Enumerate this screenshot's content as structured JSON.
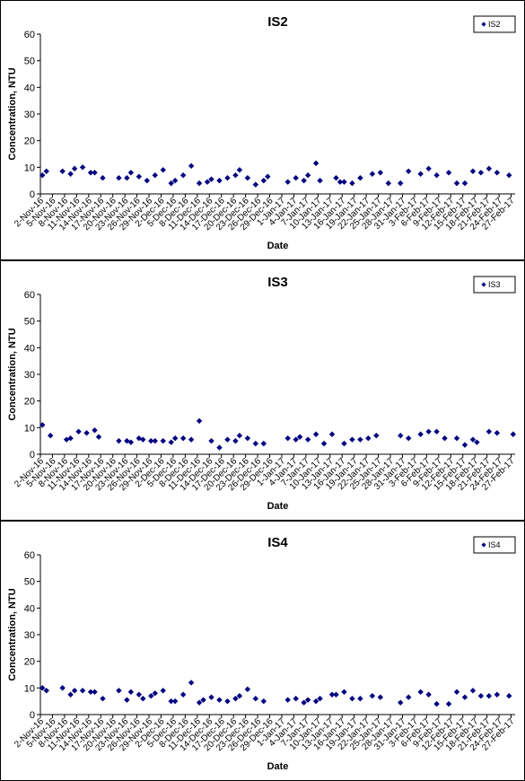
{
  "chart_data": [
    {
      "type": "scatter",
      "title": "IS2",
      "xlabel": "Date",
      "ylabel": "Concentration, NTU",
      "ylim": [
        0,
        60
      ],
      "yticks": [
        0,
        10,
        20,
        30,
        40,
        50,
        60
      ],
      "grid": false,
      "legend": "top-right",
      "marker_color": "#000080",
      "x_tick_labels": [
        "2-Nov-16",
        "5-Nov-16",
        "8-Nov-16",
        "11-Nov-16",
        "14-Nov-16",
        "17-Nov-16",
        "20-Nov-16",
        "23-Nov-16",
        "26-Nov-16",
        "29-Nov-16",
        "2-Dec-16",
        "5-Dec-16",
        "8-Dec-16",
        "11-Dec-16",
        "14-Dec-16",
        "17-Dec-16",
        "20-Dec-16",
        "23-Dec-16",
        "26-Dec-16",
        "29-Dec-16",
        "1-Jan-17",
        "4-Jan-17",
        "7-Jan-17",
        "10-Jan-17",
        "13-Jan-17",
        "16-Jan-17",
        "19-Jan-17",
        "22-Jan-17",
        "25-Jan-17",
        "28-Jan-17",
        "31-Jan-17",
        "3-Feb-17",
        "6-Feb-17",
        "9-Feb-17",
        "12-Feb-17",
        "15-Feb-17",
        "18-Feb-17",
        "21-Feb-17",
        "24-Feb-17",
        "27-Feb-17"
      ],
      "series": [
        {
          "name": "IS2",
          "x": [
            "2-Nov-16",
            "3-Nov-16",
            "7-Nov-16",
            "9-Nov-16",
            "10-Nov-16",
            "12-Nov-16",
            "14-Nov-16",
            "15-Nov-16",
            "17-Nov-16",
            "21-Nov-16",
            "23-Nov-16",
            "24-Nov-16",
            "26-Nov-16",
            "28-Nov-16",
            "30-Nov-16",
            "2-Dec-16",
            "4-Dec-16",
            "5-Dec-16",
            "7-Dec-16",
            "9-Dec-16",
            "11-Dec-16",
            "13-Dec-16",
            "14-Dec-16",
            "16-Dec-16",
            "18-Dec-16",
            "20-Dec-16",
            "21-Dec-16",
            "23-Dec-16",
            "25-Dec-16",
            "27-Dec-16",
            "28-Dec-16",
            "2-Jan-17",
            "4-Jan-17",
            "6-Jan-17",
            "7-Jan-17",
            "9-Jan-17",
            "10-Jan-17",
            "14-Jan-17",
            "15-Jan-17",
            "16-Jan-17",
            "18-Jan-17",
            "20-Jan-17",
            "23-Jan-17",
            "25-Jan-17",
            "27-Jan-17",
            "30-Jan-17",
            "1-Feb-17",
            "4-Feb-17",
            "6-Feb-17",
            "8-Feb-17",
            "11-Feb-17",
            "13-Feb-17",
            "15-Feb-17",
            "17-Feb-17",
            "19-Feb-17",
            "21-Feb-17",
            "23-Feb-17",
            "26-Feb-17"
          ],
          "values": [
            7,
            8.5,
            8.5,
            7.5,
            9.5,
            10,
            8,
            8,
            6,
            6,
            6,
            8,
            6.5,
            5,
            7,
            9,
            4,
            5,
            7,
            10.5,
            4,
            4.5,
            5.5,
            5,
            6,
            7,
            9,
            6,
            3.5,
            5,
            6.5,
            4.5,
            6,
            5,
            7,
            11.5,
            5,
            6,
            4.5,
            4.5,
            4,
            6,
            7.5,
            8,
            4,
            4,
            8.5,
            7.5,
            9.5,
            7,
            8,
            4,
            4,
            8.5,
            8,
            9.5,
            8,
            7
          ]
        }
      ]
    },
    {
      "type": "scatter",
      "title": "IS3",
      "xlabel": "Date",
      "ylabel": "Concentration, NTU",
      "ylim": [
        0,
        60
      ],
      "yticks": [
        0,
        10,
        20,
        30,
        40,
        50,
        60
      ],
      "grid": false,
      "legend": "top-right",
      "marker_color": "#000080",
      "x_tick_labels": [
        "2-Nov-16",
        "5-Nov-16",
        "8-Nov-16",
        "11-Nov-16",
        "14-Nov-16",
        "17-Nov-16",
        "20-Nov-16",
        "23-Nov-16",
        "26-Nov-16",
        "29-Nov-16",
        "2-Dec-16",
        "5-Dec-16",
        "8-Dec-16",
        "11-Dec-16",
        "14-Dec-16",
        "17-Dec-16",
        "20-Dec-16",
        "23-Dec-16",
        "26-Dec-16",
        "29-Dec-16",
        "1-Jan-17",
        "4-Jan-17",
        "7-Jan-17",
        "10-Jan-17",
        "13-Jan-17",
        "16-Jan-17",
        "19-Jan-17",
        "22-Jan-17",
        "25-Jan-17",
        "28-Jan-17",
        "31-Jan-17",
        "3-Feb-17",
        "6-Feb-17",
        "9-Feb-17",
        "12-Feb-17",
        "15-Feb-17",
        "18-Feb-17",
        "21-Feb-17",
        "24-Feb-17",
        "27-Feb-17"
      ],
      "series": [
        {
          "name": "IS3",
          "x": [
            "2-Nov-16",
            "4-Nov-16",
            "8-Nov-16",
            "9-Nov-16",
            "11-Nov-16",
            "13-Nov-16",
            "15-Nov-16",
            "16-Nov-16",
            "21-Nov-16",
            "23-Nov-16",
            "24-Nov-16",
            "26-Nov-16",
            "27-Nov-16",
            "29-Nov-16",
            "30-Nov-16",
            "2-Dec-16",
            "4-Dec-16",
            "5-Dec-16",
            "7-Dec-16",
            "9-Dec-16",
            "11-Dec-16",
            "14-Dec-16",
            "16-Dec-16",
            "18-Dec-16",
            "20-Dec-16",
            "21-Dec-16",
            "23-Dec-16",
            "25-Dec-16",
            "27-Dec-16",
            "2-Jan-17",
            "4-Jan-17",
            "5-Jan-17",
            "7-Jan-17",
            "9-Jan-17",
            "11-Jan-17",
            "13-Jan-17",
            "16-Jan-17",
            "18-Jan-17",
            "20-Jan-17",
            "22-Jan-17",
            "24-Jan-17",
            "30-Jan-17",
            "1-Feb-17",
            "4-Feb-17",
            "6-Feb-17",
            "8-Feb-17",
            "10-Feb-17",
            "13-Feb-17",
            "15-Feb-17",
            "17-Feb-17",
            "18-Feb-17",
            "21-Feb-17",
            "23-Feb-17",
            "27-Feb-17"
          ],
          "values": [
            11,
            7,
            5.5,
            6,
            8.5,
            8,
            9,
            6.5,
            5,
            5,
            4.5,
            6,
            5.5,
            5,
            5,
            5,
            4.5,
            6,
            6,
            5.5,
            12.5,
            5,
            2.5,
            5.5,
            5,
            7,
            6,
            4,
            4,
            6,
            5.5,
            6.5,
            5.5,
            7.5,
            4,
            7.5,
            4,
            5.5,
            5.5,
            6,
            7,
            7,
            6,
            7.5,
            8.5,
            8.5,
            6,
            6,
            3.5,
            5.5,
            4.5,
            8.5,
            8,
            7.5
          ]
        }
      ]
    },
    {
      "type": "scatter",
      "title": "IS4",
      "xlabel": "Date",
      "ylabel": "Concentration, NTU",
      "ylim": [
        0,
        60
      ],
      "yticks": [
        0,
        10,
        20,
        30,
        40,
        50,
        60
      ],
      "grid": false,
      "legend": "top-right",
      "marker_color": "#000080",
      "x_tick_labels": [
        "2-Nov-16",
        "5-Nov-16",
        "8-Nov-16",
        "11-Nov-16",
        "14-Nov-16",
        "17-Nov-16",
        "20-Nov-16",
        "23-Nov-16",
        "26-Nov-16",
        "29-Nov-16",
        "2-Dec-16",
        "5-Dec-16",
        "8-Dec-16",
        "11-Dec-16",
        "14-Dec-16",
        "17-Dec-16",
        "20-Dec-16",
        "23-Dec-16",
        "26-Dec-16",
        "29-Dec-16",
        "1-Jan-17",
        "4-Jan-17",
        "7-Jan-17",
        "10-Jan-17",
        "13-Jan-17",
        "16-Jan-17",
        "19-Jan-17",
        "22-Jan-17",
        "25-Jan-17",
        "28-Jan-17",
        "31-Jan-17",
        "3-Feb-17",
        "6-Feb-17",
        "9-Feb-17",
        "12-Feb-17",
        "15-Feb-17",
        "18-Feb-17",
        "21-Feb-17",
        "24-Feb-17",
        "27-Feb-17"
      ],
      "series": [
        {
          "name": "IS4",
          "x": [
            "2-Nov-16",
            "3-Nov-16",
            "7-Nov-16",
            "9-Nov-16",
            "10-Nov-16",
            "12-Nov-16",
            "14-Nov-16",
            "15-Nov-16",
            "17-Nov-16",
            "21-Nov-16",
            "23-Nov-16",
            "24-Nov-16",
            "26-Nov-16",
            "27-Nov-16",
            "29-Nov-16",
            "30-Nov-16",
            "2-Dec-16",
            "4-Dec-16",
            "5-Dec-16",
            "7-Dec-16",
            "9-Dec-16",
            "11-Dec-16",
            "12-Dec-16",
            "14-Dec-16",
            "16-Dec-16",
            "18-Dec-16",
            "20-Dec-16",
            "21-Dec-16",
            "23-Dec-16",
            "25-Dec-16",
            "27-Dec-16",
            "2-Jan-17",
            "4-Jan-17",
            "6-Jan-17",
            "7-Jan-17",
            "9-Jan-17",
            "10-Jan-17",
            "13-Jan-17",
            "14-Jan-17",
            "16-Jan-17",
            "18-Jan-17",
            "20-Jan-17",
            "23-Jan-17",
            "25-Jan-17",
            "30-Jan-17",
            "1-Feb-17",
            "4-Feb-17",
            "6-Feb-17",
            "8-Feb-17",
            "11-Feb-17",
            "13-Feb-17",
            "15-Feb-17",
            "17-Feb-17",
            "19-Feb-17",
            "21-Feb-17",
            "23-Feb-17",
            "26-Feb-17"
          ],
          "values": [
            10,
            9,
            10,
            7.5,
            9,
            9,
            8.5,
            8.5,
            6,
            9,
            5.5,
            8.5,
            7.5,
            6,
            7,
            8,
            9,
            5,
            5,
            7.5,
            12,
            4.5,
            5.5,
            6.5,
            5.5,
            5,
            6,
            7,
            9.5,
            6,
            5,
            5.5,
            6,
            4.5,
            5.5,
            5,
            6,
            7.5,
            7.5,
            8.5,
            6,
            6,
            7,
            6.5,
            4.5,
            6.5,
            8.5,
            7.5,
            4,
            4,
            8.5,
            6.5,
            9,
            7,
            7,
            7.5,
            7
          ]
        }
      ]
    }
  ]
}
